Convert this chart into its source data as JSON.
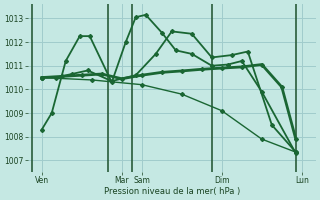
{
  "background_color": "#c5e8e3",
  "grid_color": "#a0cccc",
  "line_color": "#1a6633",
  "xlabel": "Pression niveau de la mer( hPa )",
  "ylim": [
    1006.5,
    1013.6
  ],
  "yticks": [
    1007,
    1008,
    1009,
    1010,
    1011,
    1012,
    1013
  ],
  "xlim": [
    -0.2,
    14.2
  ],
  "xtick_positions": [
    0.5,
    4.5,
    5.5,
    9.5,
    13.5
  ],
  "xtick_labels": [
    "Ven",
    "Mar",
    "Sam",
    "Dim",
    "Lun"
  ],
  "vlines_x": [
    0.0,
    3.8,
    5.0,
    9.0,
    13.2
  ],
  "series": [
    {
      "x": [
        0.5,
        1.0,
        1.7,
        2.4,
        2.9,
        4.0,
        4.7,
        5.2,
        5.7,
        6.5,
        7.2,
        8.0,
        9.0,
        9.8,
        10.5,
        11.5,
        13.2
      ],
      "y": [
        1008.3,
        1009.0,
        1011.2,
        1012.25,
        1012.25,
        1010.3,
        1012.0,
        1013.05,
        1013.15,
        1012.4,
        1011.65,
        1011.5,
        1011.0,
        1011.05,
        1011.2,
        1009.9,
        1007.3
      ],
      "lw": 1.3
    },
    {
      "x": [
        0.5,
        1.2,
        2.0,
        2.8,
        4.0,
        5.2,
        6.2,
        7.0,
        8.0,
        9.0,
        10.0,
        10.8,
        12.0,
        13.2
      ],
      "y": [
        1010.5,
        1010.5,
        1010.65,
        1010.8,
        1010.35,
        1010.6,
        1011.5,
        1012.45,
        1012.35,
        1011.35,
        1011.45,
        1011.6,
        1008.5,
        1007.35
      ],
      "lw": 1.3
    },
    {
      "x": [
        0.5,
        1.5,
        2.5,
        3.5,
        4.5,
        5.5,
        6.5,
        7.5,
        8.5,
        9.5,
        10.5,
        11.5,
        12.5,
        13.2
      ],
      "y": [
        1010.5,
        1010.55,
        1010.6,
        1010.65,
        1010.45,
        1010.6,
        1010.72,
        1010.78,
        1010.85,
        1010.9,
        1010.95,
        1011.05,
        1010.1,
        1007.9
      ],
      "lw": 2.0
    },
    {
      "x": [
        0.5,
        3.0,
        5.5,
        7.5,
        9.5,
        11.5,
        13.2
      ],
      "y": [
        1010.5,
        1010.4,
        1010.2,
        1009.8,
        1009.1,
        1007.9,
        1007.35
      ],
      "lw": 1.0
    }
  ]
}
